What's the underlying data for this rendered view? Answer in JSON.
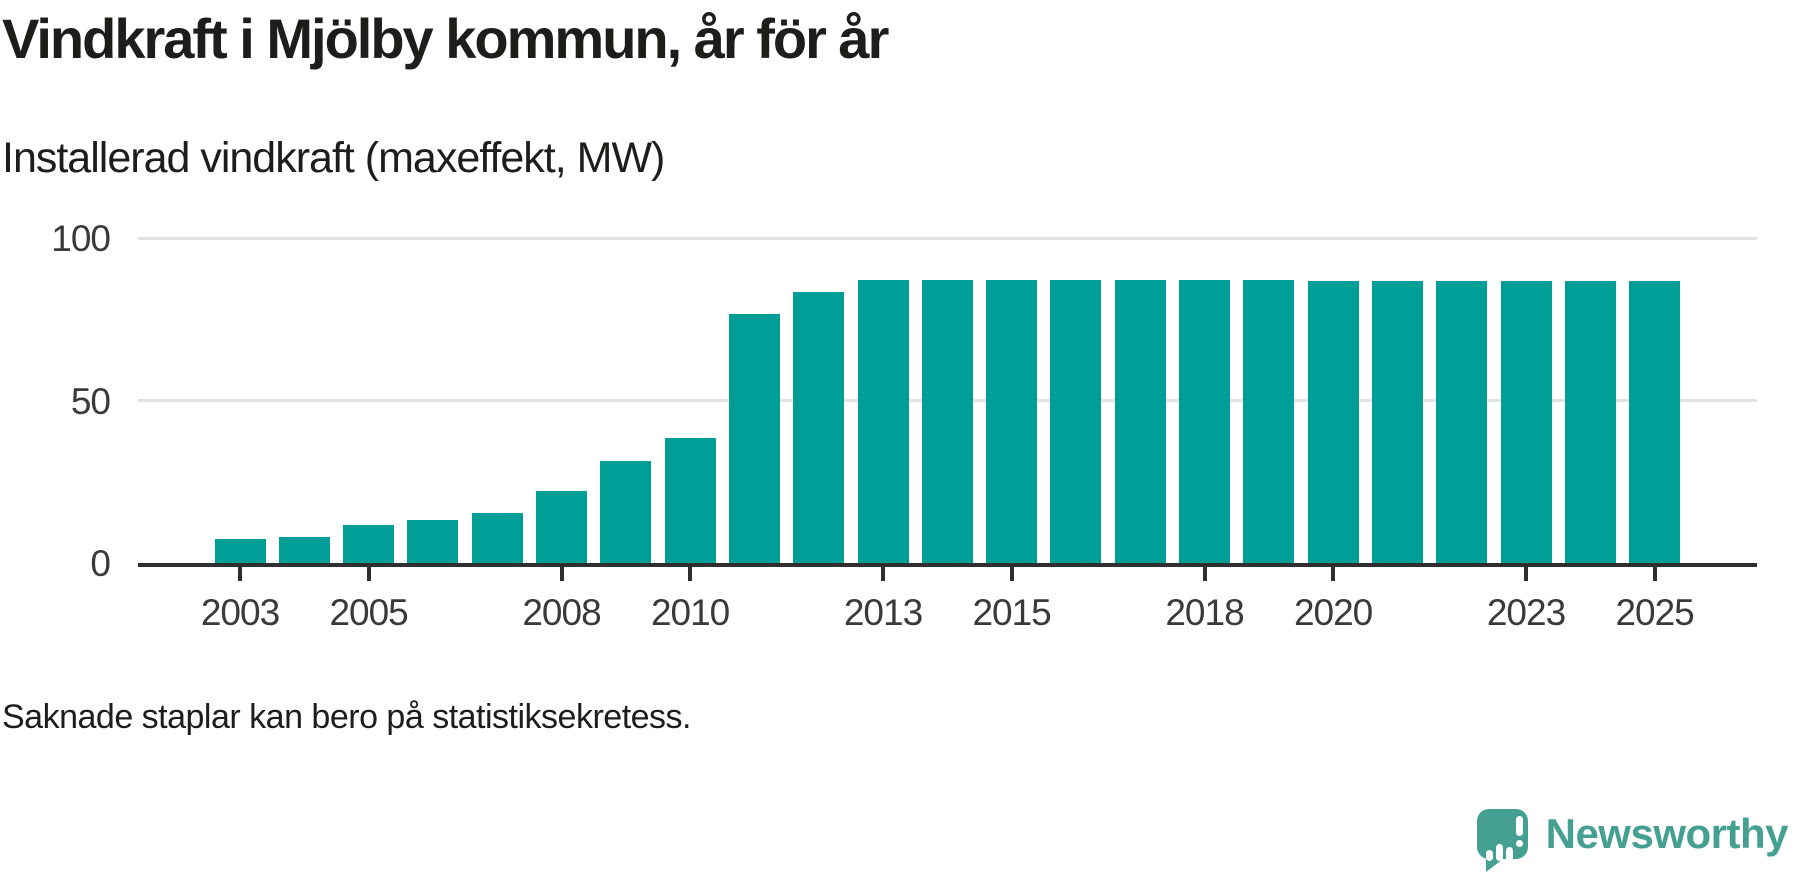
{
  "header": {
    "title": "Vindkraft i Mjölby kommun, år för år",
    "subtitle": "Installerad vindkraft (maxeffekt, MW)"
  },
  "chart_data": {
    "type": "bar",
    "title": "Vindkraft i Mjölby kommun, år för år",
    "ylabel": "Installerad vindkraft (maxeffekt, MW)",
    "unit": "MW",
    "categories": [
      "2003",
      "2004",
      "2005",
      "2006",
      "2007",
      "2008",
      "2009",
      "2010",
      "2011",
      "2012",
      "2013",
      "2014",
      "2015",
      "2016",
      "2017",
      "2018",
      "2019",
      "2020",
      "2021",
      "2022",
      "2023",
      "2024",
      "2025"
    ],
    "values": [
      7.3,
      8.0,
      11.7,
      13.2,
      15.5,
      22.2,
      31.5,
      38.5,
      76.7,
      83.3,
      87.2,
      87.2,
      87.2,
      87.2,
      87.2,
      87.2,
      87.2,
      86.7,
      86.7,
      86.7,
      86.7,
      86.7,
      86.7
    ],
    "ylim": [
      0,
      100
    ],
    "yticks": [
      0,
      50,
      100
    ],
    "xtick_labels": [
      "2003",
      "2005",
      "2008",
      "2010",
      "2013",
      "2015",
      "2018",
      "2020",
      "2023",
      "2025"
    ],
    "grid": "horizontal",
    "legend": "none",
    "bar_color": "#009e96"
  },
  "footer": {
    "note": "Saknade staplar kan bero på statistiksekretess."
  },
  "logo": {
    "text": "Newsworthy",
    "icon": "newsworthy-speech-bubble-bar-chart-icon",
    "color": "#45a092"
  },
  "colors": {
    "background": "#ffffff",
    "bar": "#009e96",
    "axis": "#2f2f2f",
    "gridline": "#e2e2e2",
    "title_text": "#1d1d1b",
    "tick_label": "#3a3a3a",
    "logo": "#45a092"
  }
}
